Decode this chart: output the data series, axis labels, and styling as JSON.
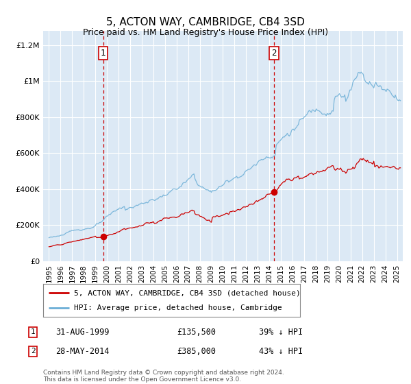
{
  "title": "5, ACTON WAY, CAMBRIDGE, CB4 3SD",
  "subtitle": "Price paid vs. HM Land Registry's House Price Index (HPI)",
  "plot_bg_color": "#dce9f5",
  "legend_label_red": "5, ACTON WAY, CAMBRIDGE, CB4 3SD (detached house)",
  "legend_label_blue": "HPI: Average price, detached house, Cambridge",
  "footer": "Contains HM Land Registry data © Crown copyright and database right 2024.\nThis data is licensed under the Open Government Licence v3.0.",
  "purchase1_date": "31-AUG-1999",
  "purchase1_price": 135500,
  "purchase1_label": "39% ↓ HPI",
  "purchase2_date": "28-MAY-2014",
  "purchase2_price": 385000,
  "purchase2_label": "43% ↓ HPI",
  "purchase1_x": 1999.67,
  "purchase2_x": 2014.42,
  "ylim": [
    0,
    1280000
  ],
  "xlim": [
    1994.5,
    2025.5
  ],
  "yticks": [
    0,
    200000,
    400000,
    600000,
    800000,
    1000000,
    1200000
  ],
  "ytick_labels": [
    "£0",
    "£200K",
    "£400K",
    "£600K",
    "£800K",
    "£1M",
    "£1.2M"
  ],
  "xticks": [
    1995,
    1996,
    1997,
    1998,
    1999,
    2000,
    2001,
    2002,
    2003,
    2004,
    2005,
    2006,
    2007,
    2008,
    2009,
    2010,
    2011,
    2012,
    2013,
    2014,
    2015,
    2016,
    2017,
    2018,
    2019,
    2020,
    2021,
    2022,
    2023,
    2024,
    2025
  ],
  "red_color": "#cc0000",
  "blue_color": "#6baed6"
}
